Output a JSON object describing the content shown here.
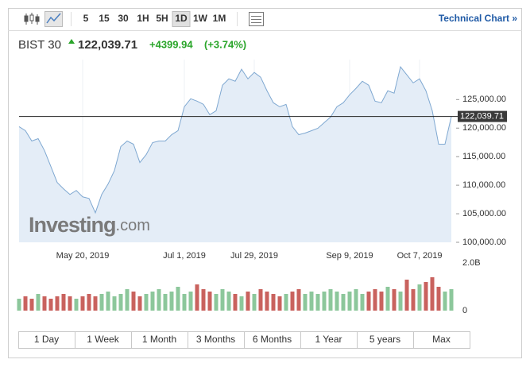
{
  "toolbar": {
    "intervals": [
      "5",
      "15",
      "30",
      "1H",
      "5H",
      "1D",
      "1W",
      "1M"
    ],
    "selected": "1D",
    "link": "Technical Chart »"
  },
  "header": {
    "name": "BIST 30",
    "price": "122,039.71",
    "change": "+4399.94",
    "change_percent": "(+3.74%)"
  },
  "watermark": {
    "brand": "Investing",
    "suffix": ".com"
  },
  "chart_data": [
    {
      "type": "area",
      "color": "#7fa8d1",
      "fill": "#e4edf7",
      "categories": [
        null,
        null,
        null,
        null,
        null,
        null,
        null,
        null,
        null,
        null,
        "May 20, 2019",
        null,
        null,
        null,
        null,
        null,
        null,
        null,
        null,
        null,
        null,
        null,
        null,
        null,
        null,
        null,
        "Jul 1, 2019",
        null,
        null,
        null,
        null,
        null,
        null,
        null,
        null,
        null,
        null,
        "Jul 29, 2019",
        null,
        null,
        null,
        null,
        null,
        null,
        null,
        null,
        null,
        null,
        null,
        null,
        null,
        null,
        "Sep 9, 2019",
        null,
        null,
        null,
        null,
        null,
        null,
        null,
        null,
        null,
        null,
        "Oct 7, 2019",
        null,
        null,
        null,
        null,
        null
      ],
      "series": [
        {
          "name": "BIST 30",
          "values": [
            120250,
            119550,
            117740,
            118150,
            116060,
            113270,
            110480,
            109360,
            108380,
            109080,
            107960,
            107680,
            105170,
            108380,
            110200,
            112570,
            116760,
            117740,
            117180,
            113970,
            115360,
            117460,
            117740,
            117740,
            118850,
            119550,
            123740,
            125140,
            124720,
            124160,
            122350,
            123040,
            127510,
            128630,
            128210,
            130310,
            128630,
            129750,
            128910,
            126540,
            124440,
            123740,
            124160,
            120250,
            118850,
            119130,
            119550,
            119970,
            120950,
            121930,
            123740,
            124440,
            125840,
            126960,
            128210,
            127510,
            124720,
            124440,
            126540,
            126120,
            130730,
            129330,
            127930,
            128630,
            126540,
            123040,
            117180,
            117180,
            122039.71
          ]
        }
      ],
      "last_label": "122,039.71",
      "ylim": [
        100000,
        132000
      ],
      "yticks": [
        {
          "value": 100000,
          "label": "100,000.00"
        },
        {
          "value": 105000,
          "label": "105,000.00"
        },
        {
          "value": 110000,
          "label": "110,000.00"
        },
        {
          "value": 115000,
          "label": "115,000.00"
        },
        {
          "value": 120000,
          "label": "120,000.00"
        },
        {
          "value": 125000,
          "label": "125,000.00"
        }
      ]
    },
    {
      "type": "bar",
      "up_color": "#8cc79b",
      "down_color": "#c9625e",
      "values": [
        500000000,
        600000000,
        500000000,
        700000000,
        600000000,
        500000000,
        600000000,
        700000000,
        600000000,
        500000000,
        600000000,
        700000000,
        600000000,
        700000000,
        800000000,
        600000000,
        700000000,
        900000000,
        800000000,
        600000000,
        700000000,
        800000000,
        900000000,
        700000000,
        800000000,
        1000000000,
        700000000,
        800000000,
        1100000000,
        900000000,
        800000000,
        700000000,
        900000000,
        800000000,
        700000000,
        600000000,
        800000000,
        700000000,
        900000000,
        800000000,
        700000000,
        600000000,
        700000000,
        800000000,
        900000000,
        700000000,
        800000000,
        700000000,
        800000000,
        900000000,
        800000000,
        700000000,
        800000000,
        900000000,
        700000000,
        800000000,
        900000000,
        800000000,
        1000000000,
        900000000,
        800000000,
        1300000000,
        900000000,
        1100000000,
        1200000000,
        1400000000,
        1000000000,
        800000000,
        900000000
      ],
      "ylim": [
        0,
        2000000000
      ],
      "yticks": [
        {
          "value": 2000000000,
          "label": "2.0B"
        },
        0
      ]
    }
  ],
  "range_buttons": [
    "1 Day",
    "1 Week",
    "1 Month",
    "3 Months",
    "6 Months",
    "1 Year",
    "5 years",
    "Max"
  ]
}
